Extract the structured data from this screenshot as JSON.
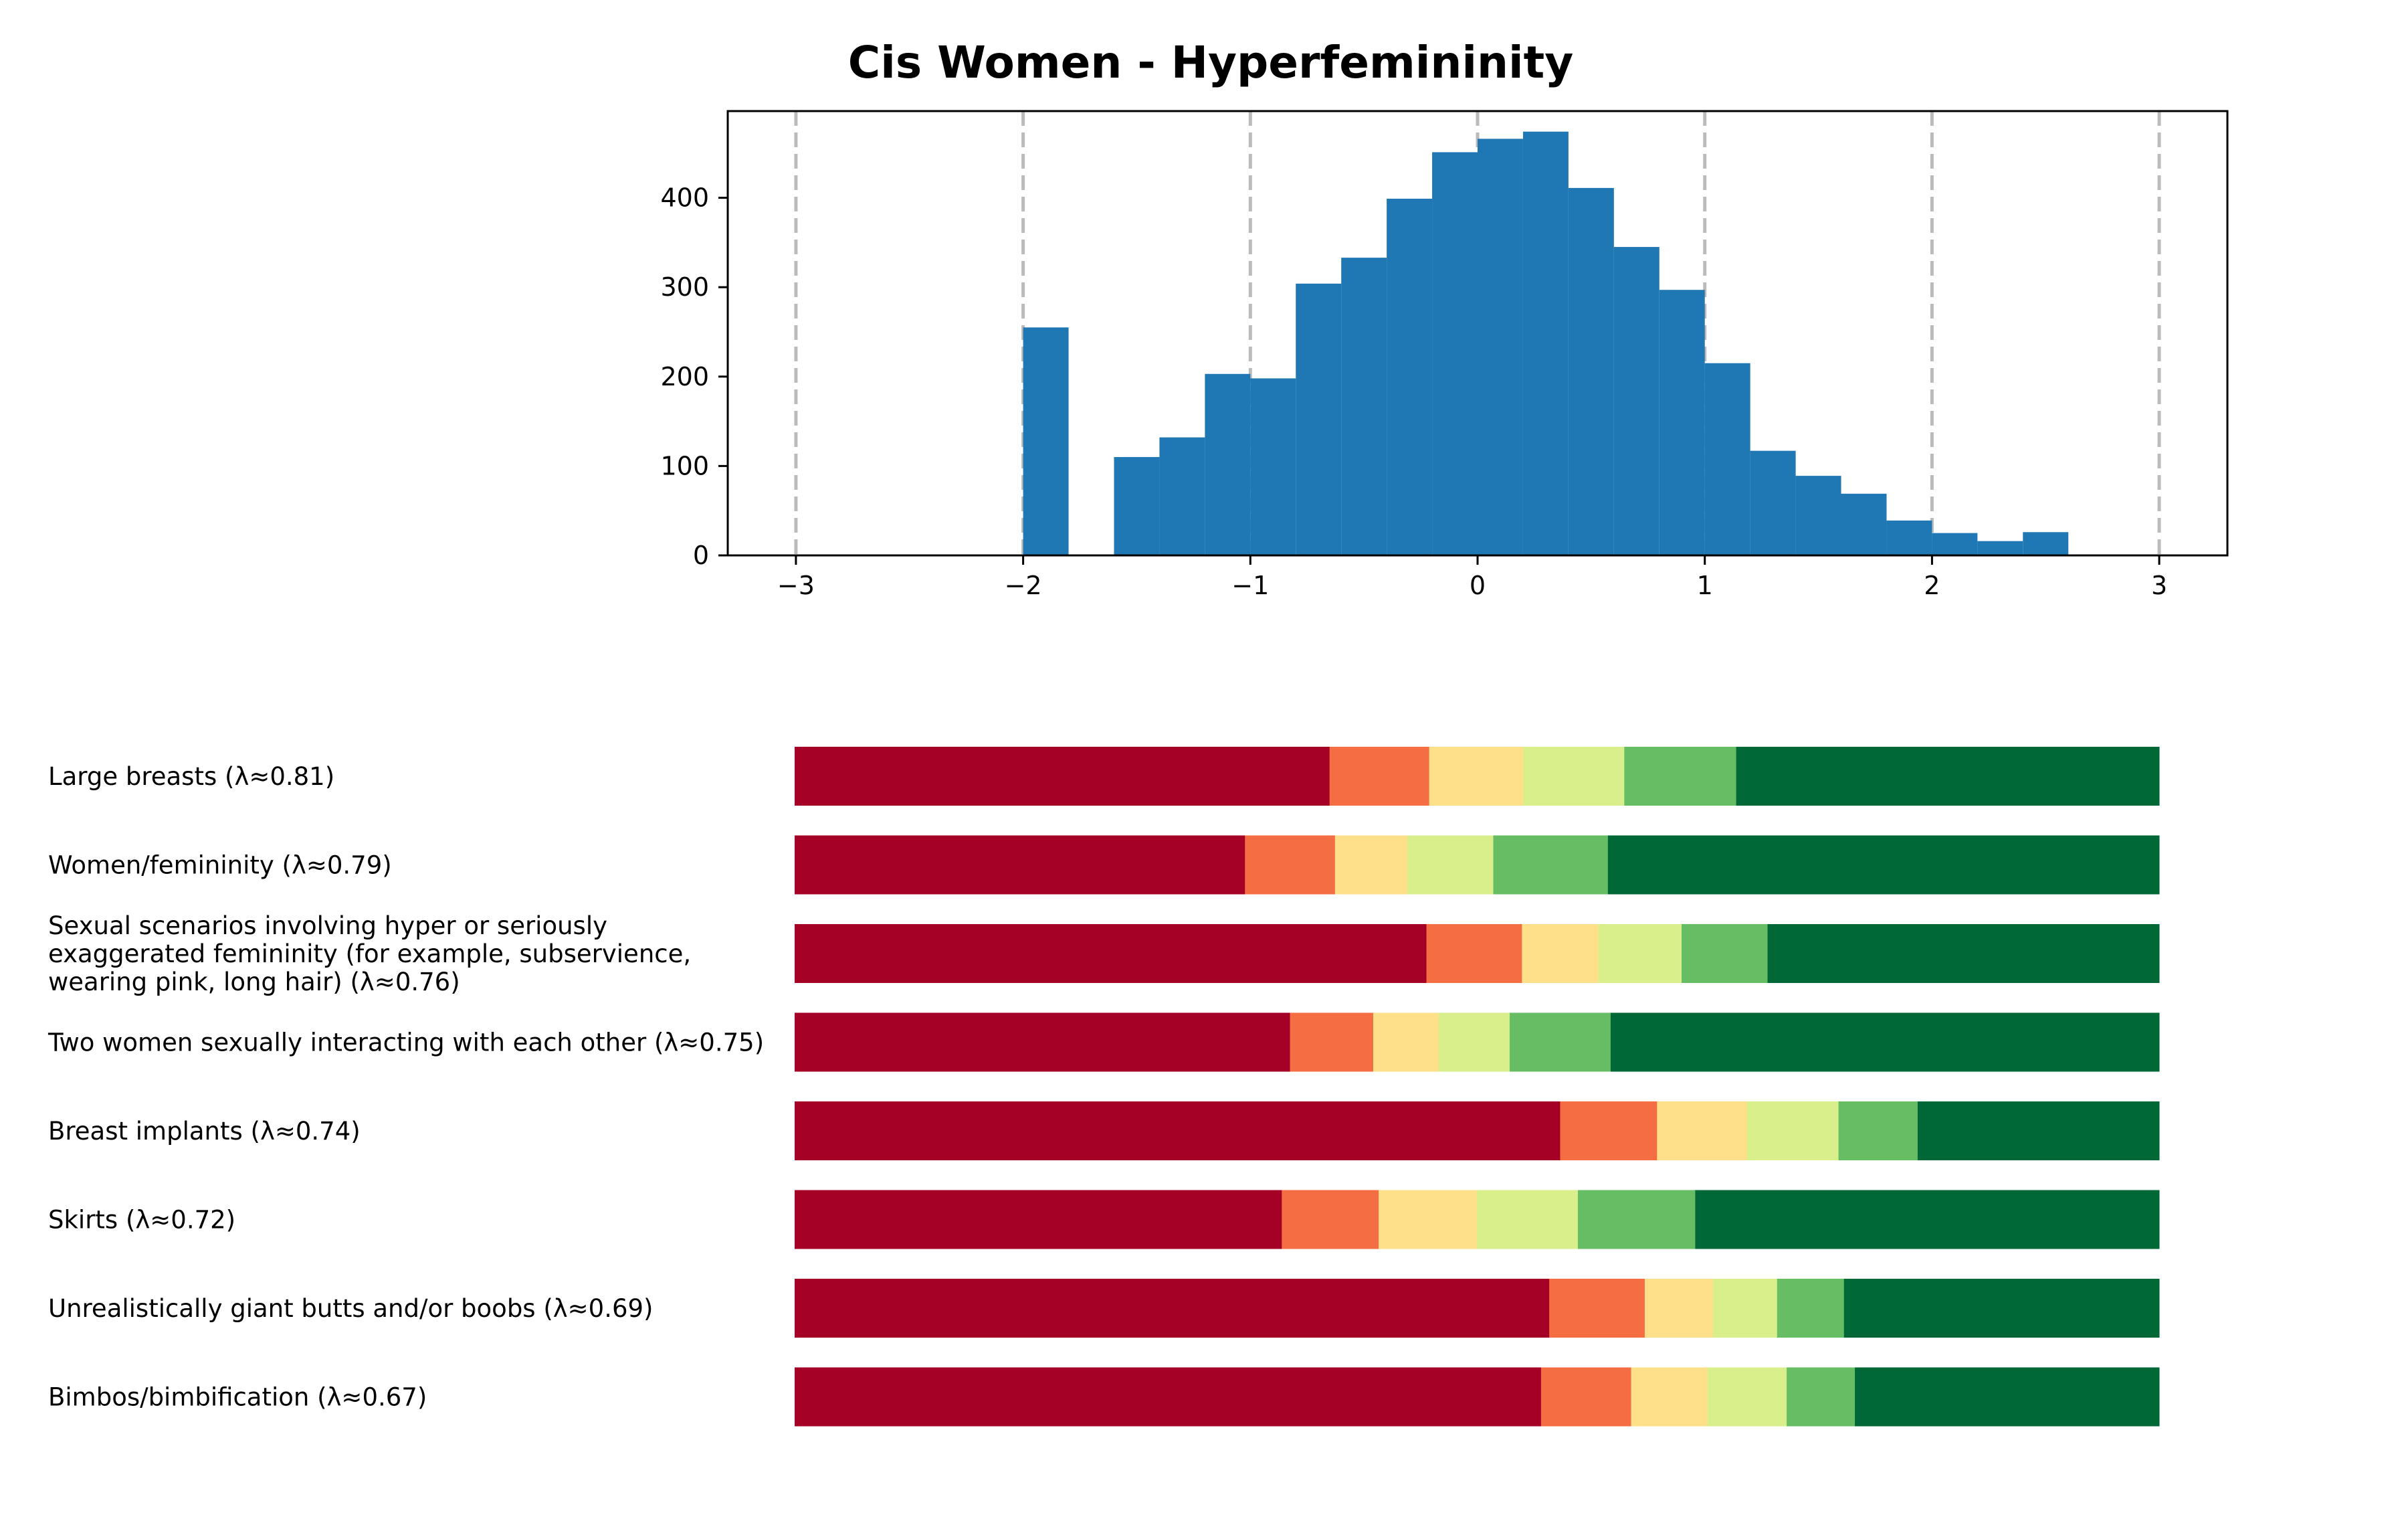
{
  "title": "Cis Women - Hyperfemininity",
  "chart_data": [
    {
      "type": "bar",
      "subtype": "histogram",
      "title": "Cis Women - Hyperfemininity",
      "xlabel": "",
      "ylabel": "",
      "xlim": [
        -3.3,
        3.3
      ],
      "ylim": [
        0,
        497
      ],
      "xticks": [
        -3,
        -2,
        -1,
        0,
        1,
        2,
        3
      ],
      "xtick_labels": [
        "−3",
        "−2",
        "−1",
        "0",
        "1",
        "2",
        "3"
      ],
      "yticks": [
        0,
        100,
        200,
        300,
        400
      ],
      "ytick_labels": [
        "0",
        "100",
        "200",
        "300",
        "400"
      ],
      "vlines": [
        -3,
        -2,
        -1,
        0,
        1,
        2,
        3
      ],
      "bin_width": 0.2,
      "bins": [
        {
          "x0": -2.0,
          "count": 255
        },
        {
          "x0": -1.6,
          "count": 110
        },
        {
          "x0": -1.4,
          "count": 132
        },
        {
          "x0": -1.2,
          "count": 203
        },
        {
          "x0": -1.0,
          "count": 198
        },
        {
          "x0": -0.8,
          "count": 304
        },
        {
          "x0": -0.6,
          "count": 333
        },
        {
          "x0": -0.4,
          "count": 399
        },
        {
          "x0": -0.2,
          "count": 451
        },
        {
          "x0": 0.0,
          "count": 466
        },
        {
          "x0": 0.2,
          "count": 474
        },
        {
          "x0": 0.4,
          "count": 411
        },
        {
          "x0": 0.6,
          "count": 345
        },
        {
          "x0": 0.8,
          "count": 297
        },
        {
          "x0": 1.0,
          "count": 215
        },
        {
          "x0": 1.2,
          "count": 117
        },
        {
          "x0": 1.4,
          "count": 89
        },
        {
          "x0": 1.6,
          "count": 69
        },
        {
          "x0": 1.8,
          "count": 39
        },
        {
          "x0": 2.0,
          "count": 25
        },
        {
          "x0": 2.2,
          "count": 16
        },
        {
          "x0": 2.4,
          "count": 26
        }
      ],
      "colors": {
        "bar": "#1f77b4",
        "vline": "#bbbbbb"
      },
      "grid": false
    },
    {
      "type": "bar",
      "subtype": "stacked-horizontal-100",
      "segment_colors": [
        "#a50026",
        "#f46d43",
        "#fee08b",
        "#d9ef8b",
        "#66bd63",
        "#006837"
      ],
      "categories": [
        "Large breasts (λ≈0.81)",
        "Women/femininity (λ≈0.79)",
        "Sexual scenarios involving hyper or seriously\nexaggerated femininity (for example, subservience,\nwearing pink, long hair) (λ≈0.76)",
        "Two women sexually interacting with each other (λ≈0.75)",
        "Breast implants (λ≈0.74)",
        "Skirts (λ≈0.72)",
        "Unrealistically giant butts and/or boobs (λ≈0.69)",
        "Bimbos/bimbification (λ≈0.67)"
      ],
      "values": [
        [
          0.392,
          0.073,
          0.069,
          0.074,
          0.082,
          0.31
        ],
        [
          0.33,
          0.066,
          0.053,
          0.063,
          0.084,
          0.404
        ],
        [
          0.463,
          0.07,
          0.056,
          0.061,
          0.063,
          0.287
        ],
        [
          0.363,
          0.061,
          0.048,
          0.052,
          0.074,
          0.402
        ],
        [
          0.561,
          0.071,
          0.066,
          0.067,
          0.058,
          0.177
        ],
        [
          0.357,
          0.071,
          0.072,
          0.074,
          0.086,
          0.34
        ],
        [
          0.553,
          0.07,
          0.05,
          0.047,
          0.049,
          0.231
        ],
        [
          0.547,
          0.066,
          0.056,
          0.058,
          0.05,
          0.223
        ]
      ],
      "grid": false,
      "legend": "none"
    }
  ]
}
